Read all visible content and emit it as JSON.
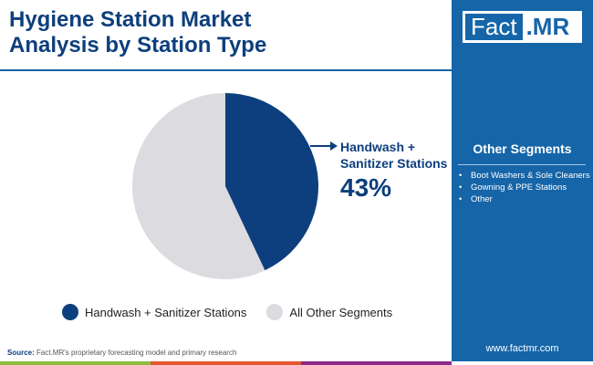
{
  "title": [
    "Hygiene Station Market",
    "Analysis by Station Type"
  ],
  "logo": {
    "part1": "Fact",
    "part2": ".MR"
  },
  "side": {
    "title": "Other Segments",
    "items": [
      "Boot Washers & Sole Cleaners",
      "Gowning & PPE Stations",
      "Other"
    ],
    "url": "www.factmr.com"
  },
  "callout": {
    "label_line1": "Handwash +",
    "label_line2": "Sanitizer Stations",
    "value": "43%"
  },
  "source": {
    "label": "Source:",
    "text": " Fact.MR's proprietary forecasting model and primary research"
  },
  "colors": {
    "primary": "#0d3f7e",
    "other": "#dcdbdf",
    "panel": "#1565a8",
    "bars": [
      "#8cbd3f",
      "#e4572e",
      "#8b2a8b"
    ]
  },
  "chart_data": {
    "type": "pie",
    "categories": [
      "Handwash + Sanitizer Stations",
      "All Other Segments"
    ],
    "values": [
      43,
      57
    ],
    "legend": "bottom"
  }
}
